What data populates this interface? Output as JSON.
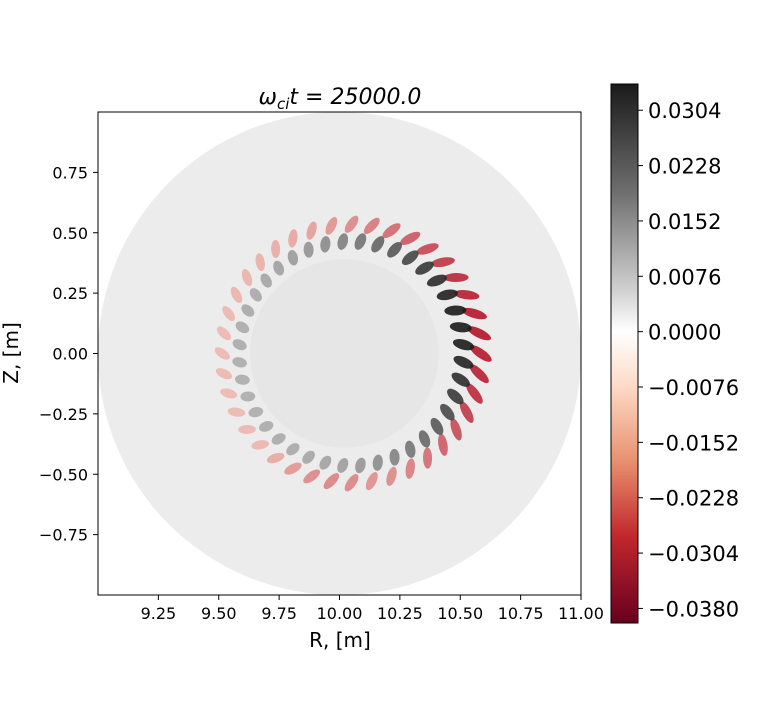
{
  "chart_data": {
    "type": "heatmap",
    "title_symbol": "ω",
    "title_subscript": "ci",
    "title_suffix": "t = 25000.0",
    "xlabel": "R, [m]",
    "ylabel": "Z, [m]",
    "xlim": [
      9.0,
      11.0
    ],
    "ylim": [
      -1.0,
      1.0
    ],
    "xticks": [
      9.25,
      9.5,
      9.75,
      10.0,
      10.25,
      10.5,
      10.75,
      11.0
    ],
    "xtick_labels": [
      "9.25",
      "9.50",
      "9.75",
      "10.00",
      "10.25",
      "10.50",
      "10.75",
      "11.00"
    ],
    "yticks": [
      0.75,
      0.5,
      0.25,
      0.0,
      -0.25,
      -0.5,
      -0.75
    ],
    "ytick_labels": [
      "0.75",
      "0.50",
      "0.25",
      "0.00",
      "−0.25",
      "−0.50",
      "−0.75"
    ],
    "domain": {
      "center_r": 10.0,
      "center_z": 0.0,
      "radius": 1.0
    },
    "mode_structure": {
      "ring_radius_m": 0.5,
      "ring_center_r": 10.05,
      "ring_center_z": 0.0,
      "poloidal_mode_number": 40,
      "peak_angle_deg": 10
    },
    "colorbar": {
      "colormap": "RdGy_r",
      "vmin": -0.04,
      "vmax": 0.034,
      "ticks": [
        0.0304,
        0.0228,
        0.0152,
        0.0076,
        0.0,
        -0.0076,
        -0.0152,
        -0.0228,
        -0.0304,
        -0.038
      ],
      "tick_labels": [
        "0.0304",
        "0.0228",
        "0.0152",
        "0.0076",
        "0.0000",
        "−0.0076",
        "−0.0152",
        "−0.0228",
        "−0.0304",
        "−0.0380"
      ]
    },
    "colors": {
      "max": "#1a1a1a",
      "zero": "#ffffff",
      "min": "#67001f",
      "background_gray": "#ececec"
    }
  }
}
